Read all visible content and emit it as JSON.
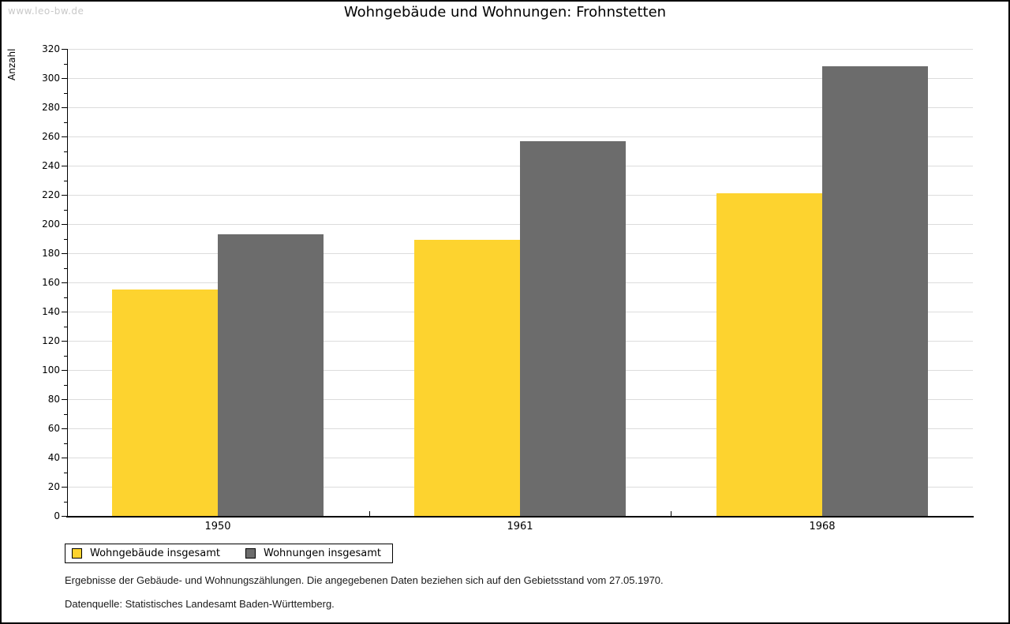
{
  "watermark": "www.leo-bw.de",
  "title": "Wohngebäude und Wohnungen: Frohnstetten",
  "chart_data": {
    "type": "bar",
    "title": "Wohngebäude und Wohnungen: Frohnstetten",
    "ylabel": "Anzahl",
    "xlabel": "",
    "categories": [
      "1950",
      "1961",
      "1968"
    ],
    "series": [
      {
        "name": "Wohngebäude insgesamt",
        "color": "#fdd32f",
        "values": [
          155,
          189,
          221
        ]
      },
      {
        "name": "Wohnungen insgesamt",
        "color": "#6c6c6c",
        "values": [
          193,
          257,
          308
        ]
      }
    ],
    "ylim": [
      0,
      320
    ],
    "ytick_step": 20,
    "yminor_step": 10,
    "grid": "horizontal",
    "gridline_color": "#dcdcdc",
    "legend_position": "bottom-left"
  },
  "footnotes": {
    "line1": "Ergebnisse der Gebäude- und Wohnungszählungen. Die angegebenen Daten beziehen sich auf den Gebietsstand vom 27.05.1970.",
    "line2": "Datenquelle: Statistisches Landesamt Baden-Württemberg."
  }
}
